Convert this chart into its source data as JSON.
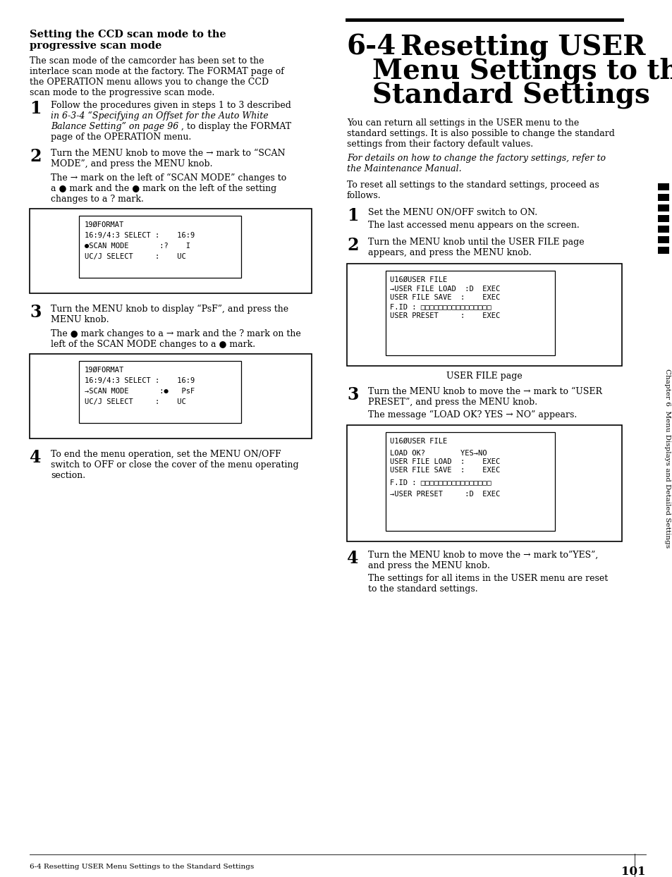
{
  "bg_color": "#ffffff",
  "page_number": "101",
  "footer_left": "6-4 Resetting USER Menu Settings to the Standard Settings",
  "right_sidebar_text": "Chapter 6  Menu Displays and Detailed Settings",
  "left_col": {
    "section_title_line1": "Setting the CCD scan mode to the",
    "section_title_line2": "progressive scan mode",
    "intro_lines": [
      "The scan mode of the camcorder has been set to the",
      "interlace scan mode at the factory. The FORMAT page of",
      "the OPERATION menu allows you to change the CCD",
      "scan mode to the progressive scan mode."
    ],
    "step1_lines_regular": [
      "Follow the procedures given in steps 1 to 3 described"
    ],
    "step1_lines_italic": [
      "in 6-3-4 “Specifying an Offset for the Auto White",
      "Balance Setting” on page 96"
    ],
    "step1_lines_regular2": [
      ", to display the FORMAT",
      "page of the OPERATION menu."
    ],
    "step2_lines": [
      "Turn the MENU knob to move the → mark to “SCAN",
      "MODE”, and press the MENU knob."
    ],
    "step2_sub": [
      "The → mark on the left of “SCAN MODE” changes to",
      "a ● mark and the ● mark on the left of the setting",
      "changes to a ? mark."
    ],
    "box1_lines": [
      "19ØFORMAT",
      "16:9/4:3 SELECT :    16:9",
      "●SCAN MODE       :?    I",
      "UC/J SELECT     :    UC"
    ],
    "step3_lines": [
      "Turn the MENU knob to display “PsF”, and press the",
      "MENU knob."
    ],
    "step3_sub": [
      "The ● mark changes to a → mark and the ? mark on the",
      "left of the SCAN MODE changes to a ● mark."
    ],
    "box2_lines": [
      "19ØFORMAT",
      "16:9/4:3 SELECT :    16:9",
      "→SCAN MODE       :●   PsF",
      "UC/J SELECT     :    UC"
    ],
    "step4_lines": [
      "To end the menu operation, set the MENU ON/OFF",
      "switch to OFF or close the cover of the menu operating",
      "section."
    ]
  },
  "right_col": {
    "chapter_title_num": "6-4",
    "chapter_title_line1": "Resetting USER",
    "chapter_title_line2": "Menu Settings to the",
    "chapter_title_line3": "Standard Settings",
    "intro_lines": [
      "You can return all settings in the USER menu to the",
      "standard settings. It is also possible to change the standard",
      "settings from their factory default values."
    ],
    "italic_note": [
      "For details on how to change the factory settings, refer to",
      "the Maintenance Manual."
    ],
    "proceed_lines": [
      "To reset all settings to the standard settings, proceed as",
      "follows."
    ],
    "step1_line": "Set the MENU ON/OFF switch to ON.",
    "step1_sub": "The last accessed menu appears on the screen.",
    "step2_lines": [
      "Turn the MENU knob until the USER FILE page",
      "appears, and press the MENU knob."
    ],
    "box1_lines": [
      "U16ØUSER FILE",
      "→USER FILE LOAD  :D  EXEC",
      "USER FILE SAVE  :    EXEC",
      "",
      "F.ID : □□□□□□□□□□□□□□□□",
      "",
      "USER PRESET     :    EXEC"
    ],
    "box1_caption": "USER FILE page",
    "step3_lines": [
      "Turn the MENU knob to move the → mark to “USER",
      "PRESET”, and press the MENU knob."
    ],
    "step3_sub": "The message “LOAD OK? YES → NO” appears.",
    "box2_lines": [
      "U16ØUSER FILE",
      "",
      "LOAD OK?        YES→NO",
      "USER FILE LOAD  :    EXEC",
      "USER FILE SAVE  :    EXEC",
      "",
      "F.ID : □□□□□□□□□□□□□□□□",
      "",
      "→USER PRESET     :D  EXEC"
    ],
    "step4_lines": [
      "Turn the MENU knob to move the → mark to”YES”,",
      "and press the MENU knob."
    ],
    "step4_sub": [
      "The settings for all items in the USER menu are reset",
      "to the standard settings."
    ]
  }
}
